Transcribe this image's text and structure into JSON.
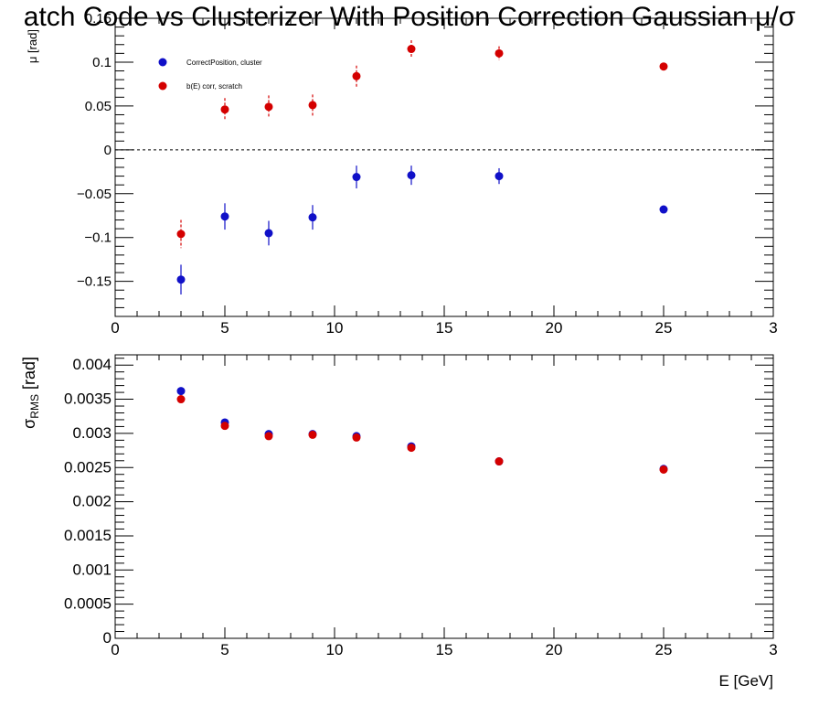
{
  "title": "atch Code vs Clusterizer With Position Correction  Gaussian μ/σ",
  "colors": {
    "series_blue": "#1010c8",
    "series_red": "#d40000",
    "frame": "#000000"
  },
  "chart_data": [
    {
      "type": "scatter",
      "panel": "top",
      "ylabel": "μ [rad]",
      "xlabel": "",
      "xlim": [
        0,
        30
      ],
      "ylim": [
        -0.19,
        0.15
      ],
      "x_ticks": [
        "0",
        "5",
        "10",
        "15",
        "20",
        "25",
        "3"
      ],
      "y_ticks": [
        {
          "v": 0.15,
          "label": "0.15"
        },
        {
          "v": 0.1,
          "label": "0.1"
        },
        {
          "v": 0.05,
          "label": "0.05"
        },
        {
          "v": 0,
          "label": "0"
        },
        {
          "v": -0.05,
          "label": "−0.05"
        },
        {
          "v": -0.1,
          "label": "−0.1"
        },
        {
          "v": -0.15,
          "label": "−0.15"
        }
      ],
      "reference_line": {
        "y": 0,
        "style": "dashed"
      },
      "legend_placement": "top-left",
      "series": [
        {
          "name": "CorrectPosition, cluster",
          "color": "#1010c8",
          "points": [
            {
              "x": 3,
              "y": -0.148,
              "err": 0.017
            },
            {
              "x": 5,
              "y": -0.076,
              "err": 0.015
            },
            {
              "x": 7,
              "y": -0.095,
              "err": 0.014
            },
            {
              "x": 9,
              "y": -0.077,
              "err": 0.014
            },
            {
              "x": 11,
              "y": -0.031,
              "err": 0.013
            },
            {
              "x": 13.5,
              "y": -0.029,
              "err": 0.011
            },
            {
              "x": 17.5,
              "y": -0.03,
              "err": 0.009
            },
            {
              "x": 25,
              "y": -0.068,
              "err": 0.004
            }
          ]
        },
        {
          "name": "b(E) corr, scratch",
          "color": "#d40000",
          "points": [
            {
              "x": 3,
              "y": -0.096,
              "err": 0.016
            },
            {
              "x": 5,
              "y": 0.046,
              "err": 0.013
            },
            {
              "x": 7,
              "y": 0.049,
              "err": 0.013
            },
            {
              "x": 9,
              "y": 0.051,
              "err": 0.012
            },
            {
              "x": 11,
              "y": 0.084,
              "err": 0.012
            },
            {
              "x": 13.5,
              "y": 0.115,
              "err": 0.01
            },
            {
              "x": 17.5,
              "y": 0.11,
              "err": 0.008
            },
            {
              "x": 25,
              "y": 0.095,
              "err": 0.004
            }
          ]
        }
      ]
    },
    {
      "type": "scatter",
      "panel": "bottom",
      "ylabel": "σ",
      "ylabel_sub": "RMS",
      "ylabel_unit": " [rad]",
      "xlabel": "E [GeV]",
      "xlim": [
        0,
        30
      ],
      "ylim": [
        0,
        0.00415
      ],
      "x_ticks": [
        "0",
        "5",
        "10",
        "15",
        "20",
        "25",
        "3"
      ],
      "y_ticks": [
        {
          "v": 0.004,
          "label": "0.004"
        },
        {
          "v": 0.0035,
          "label": "0.0035"
        },
        {
          "v": 0.003,
          "label": "0.003"
        },
        {
          "v": 0.0025,
          "label": "0.0025"
        },
        {
          "v": 0.002,
          "label": "0.002"
        },
        {
          "v": 0.0015,
          "label": "0.0015"
        },
        {
          "v": 0.001,
          "label": "0.001"
        },
        {
          "v": 0.0005,
          "label": "0.0005"
        },
        {
          "v": 0,
          "label": "0"
        }
      ],
      "series": [
        {
          "name": "CorrectPosition, cluster",
          "color": "#1010c8",
          "points": [
            {
              "x": 3,
              "y": 0.00362
            },
            {
              "x": 5,
              "y": 0.00316
            },
            {
              "x": 7,
              "y": 0.00299
            },
            {
              "x": 9,
              "y": 0.00299
            },
            {
              "x": 11,
              "y": 0.00296
            },
            {
              "x": 13.5,
              "y": 0.00281
            },
            {
              "x": 17.5,
              "y": 0.00259
            },
            {
              "x": 25,
              "y": 0.00248
            }
          ]
        },
        {
          "name": "b(E) corr, scratch",
          "color": "#d40000",
          "points": [
            {
              "x": 3,
              "y": 0.0035
            },
            {
              "x": 5,
              "y": 0.00311
            },
            {
              "x": 7,
              "y": 0.00296
            },
            {
              "x": 9,
              "y": 0.00298
            },
            {
              "x": 11,
              "y": 0.00294
            },
            {
              "x": 13.5,
              "y": 0.00279
            },
            {
              "x": 17.5,
              "y": 0.00259
            },
            {
              "x": 25,
              "y": 0.00247
            }
          ]
        }
      ]
    }
  ]
}
